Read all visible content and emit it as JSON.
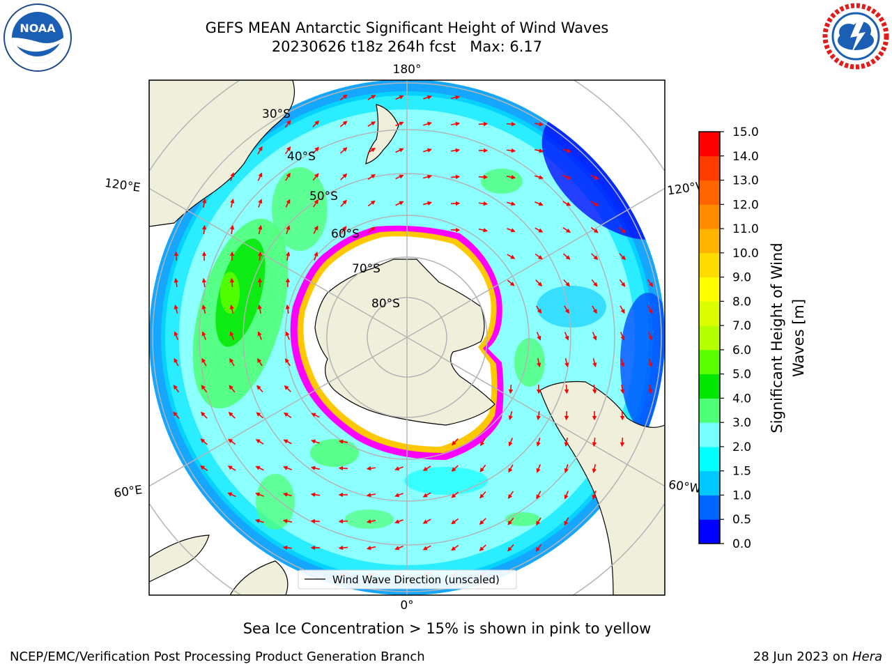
{
  "header": {
    "title_line1": "GEFS MEAN Antarctic Significant Height of Wind Waves",
    "title_line2": "20230626 t18z 264h fcst   Max: 6.17"
  },
  "logos": {
    "left": "NOAA",
    "right": "NATIONAL WEATHER SERVICE"
  },
  "map": {
    "projection": "south-polar-stereographic",
    "longitude_labels": {
      "top": "180°",
      "bottom": "0°",
      "upper_left": "120°E",
      "upper_right": "120°W",
      "lower_left": "60°E",
      "lower_right": "60°W"
    },
    "latitude_labels": [
      "30°S",
      "40°S",
      "50°S",
      "60°S",
      "70°S",
      "80°S"
    ],
    "legend_label": "Wind Wave Direction (unscaled)",
    "arrow_color": "#ff0000",
    "land_color": "#efefdc",
    "ice_colors": [
      "#ff00ff",
      "#ffa000",
      "#ffff00"
    ]
  },
  "colorbar": {
    "label": "Significant Height of Wind Waves [m]",
    "label_line1": "Significant Height of Wind",
    "label_line2": "Waves [m]",
    "ticks": [
      "0.0",
      "0.5",
      "1.0",
      "1.5",
      "2.0",
      "3.0",
      "4.0",
      "5.0",
      "6.0",
      "7.0",
      "8.0",
      "9.0",
      "10.0",
      "11.0",
      "12.0",
      "13.0",
      "14.0",
      "15.0"
    ],
    "colors": [
      "#0000ff",
      "#0064ff",
      "#00c8ff",
      "#00ffff",
      "#78ffff",
      "#50ff78",
      "#00e600",
      "#5aff00",
      "#b4ff00",
      "#dcff00",
      "#ffff00",
      "#ffdc00",
      "#ffb400",
      "#ff8c00",
      "#ff6400",
      "#ff3c00",
      "#ff0000"
    ]
  },
  "captions": {
    "ice_note": "Sea Ice Concentration > 15% is shown in pink to yellow",
    "footer_left": "NCEP/EMC/Verification Post Processing Product Generation Branch",
    "footer_date": "28 Jun 2023 on ",
    "footer_machine": "Hera"
  }
}
